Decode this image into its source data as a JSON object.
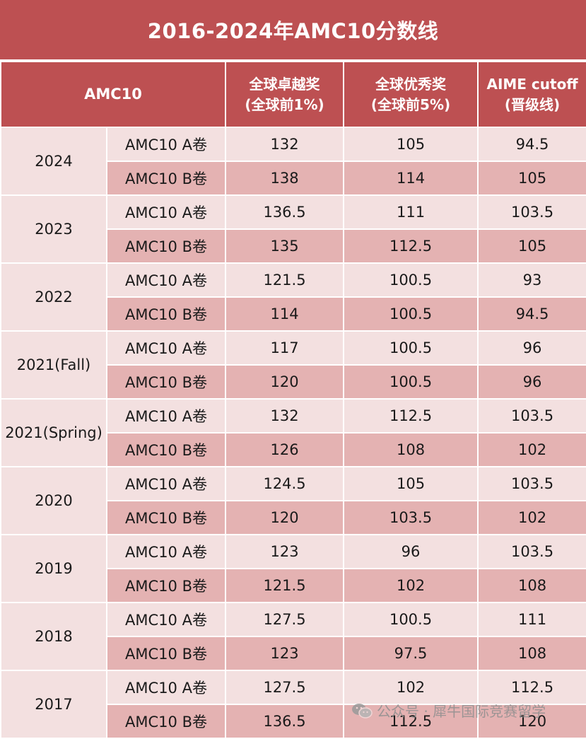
{
  "title": "2016-2024年AMC10分数线",
  "headers": {
    "amc": "AMC10",
    "col1_line1": "全球卓越奖",
    "col1_line2": "(全球前1%)",
    "col2_line1": "全球优秀奖",
    "col2_line2": "(全球前5%)",
    "col3_line1": "AIME cutoff",
    "col3_line2": "(晋级线)"
  },
  "years": [
    {
      "year": "2024",
      "rows": [
        {
          "paper": "AMC10 A卷",
          "distinction": "132",
          "honor": "105",
          "aime": "94.5"
        },
        {
          "paper": "AMC10 B卷",
          "distinction": "138",
          "honor": "114",
          "aime": "105"
        }
      ]
    },
    {
      "year": "2023",
      "rows": [
        {
          "paper": "AMC10 A卷",
          "distinction": "136.5",
          "honor": "111",
          "aime": "103.5"
        },
        {
          "paper": "AMC10 B卷",
          "distinction": "135",
          "honor": "112.5",
          "aime": "105"
        }
      ]
    },
    {
      "year": "2022",
      "rows": [
        {
          "paper": "AMC10 A卷",
          "distinction": "121.5",
          "honor": "100.5",
          "aime": "93"
        },
        {
          "paper": "AMC10 B卷",
          "distinction": "114",
          "honor": "100.5",
          "aime": "94.5"
        }
      ]
    },
    {
      "year": "2021(Fall)",
      "rows": [
        {
          "paper": "AMC10 A卷",
          "distinction": "117",
          "honor": "100.5",
          "aime": "96"
        },
        {
          "paper": "AMC10 B卷",
          "distinction": "120",
          "honor": "100.5",
          "aime": "96"
        }
      ]
    },
    {
      "year": "2021(Spring)",
      "rows": [
        {
          "paper": "AMC10 A卷",
          "distinction": "132",
          "honor": "112.5",
          "aime": "103.5"
        },
        {
          "paper": "AMC10 B卷",
          "distinction": "126",
          "honor": "108",
          "aime": "102"
        }
      ]
    },
    {
      "year": "2020",
      "rows": [
        {
          "paper": "AMC10 A卷",
          "distinction": "124.5",
          "honor": "105",
          "aime": "103.5"
        },
        {
          "paper": "AMC10 B卷",
          "distinction": "120",
          "honor": "103.5",
          "aime": "102"
        }
      ]
    },
    {
      "year": "2019",
      "rows": [
        {
          "paper": "AMC10 A卷",
          "distinction": "123",
          "honor": "96",
          "aime": "103.5"
        },
        {
          "paper": "AMC10 B卷",
          "distinction": "121.5",
          "honor": "102",
          "aime": "108"
        }
      ]
    },
    {
      "year": "2018",
      "rows": [
        {
          "paper": "AMC10 A卷",
          "distinction": "127.5",
          "honor": "100.5",
          "aime": "111"
        },
        {
          "paper": "AMC10 B卷",
          "distinction": "123",
          "honor": "97.5",
          "aime": "108"
        }
      ]
    },
    {
      "year": "2017",
      "rows": [
        {
          "paper": "AMC10 A卷",
          "distinction": "127.5",
          "honor": "102",
          "aime": "112.5"
        },
        {
          "paper": "AMC10 B卷",
          "distinction": "136.5",
          "honor": "112.5",
          "aime": "120"
        }
      ]
    }
  ],
  "watermark": {
    "text": "公众号 · 犀牛国际竞赛留学",
    "icon": "wechat-icon"
  },
  "colors": {
    "header_bg": "#bd5052",
    "row_light": "#f3e0e0",
    "row_dark": "#e4b2b2"
  }
}
